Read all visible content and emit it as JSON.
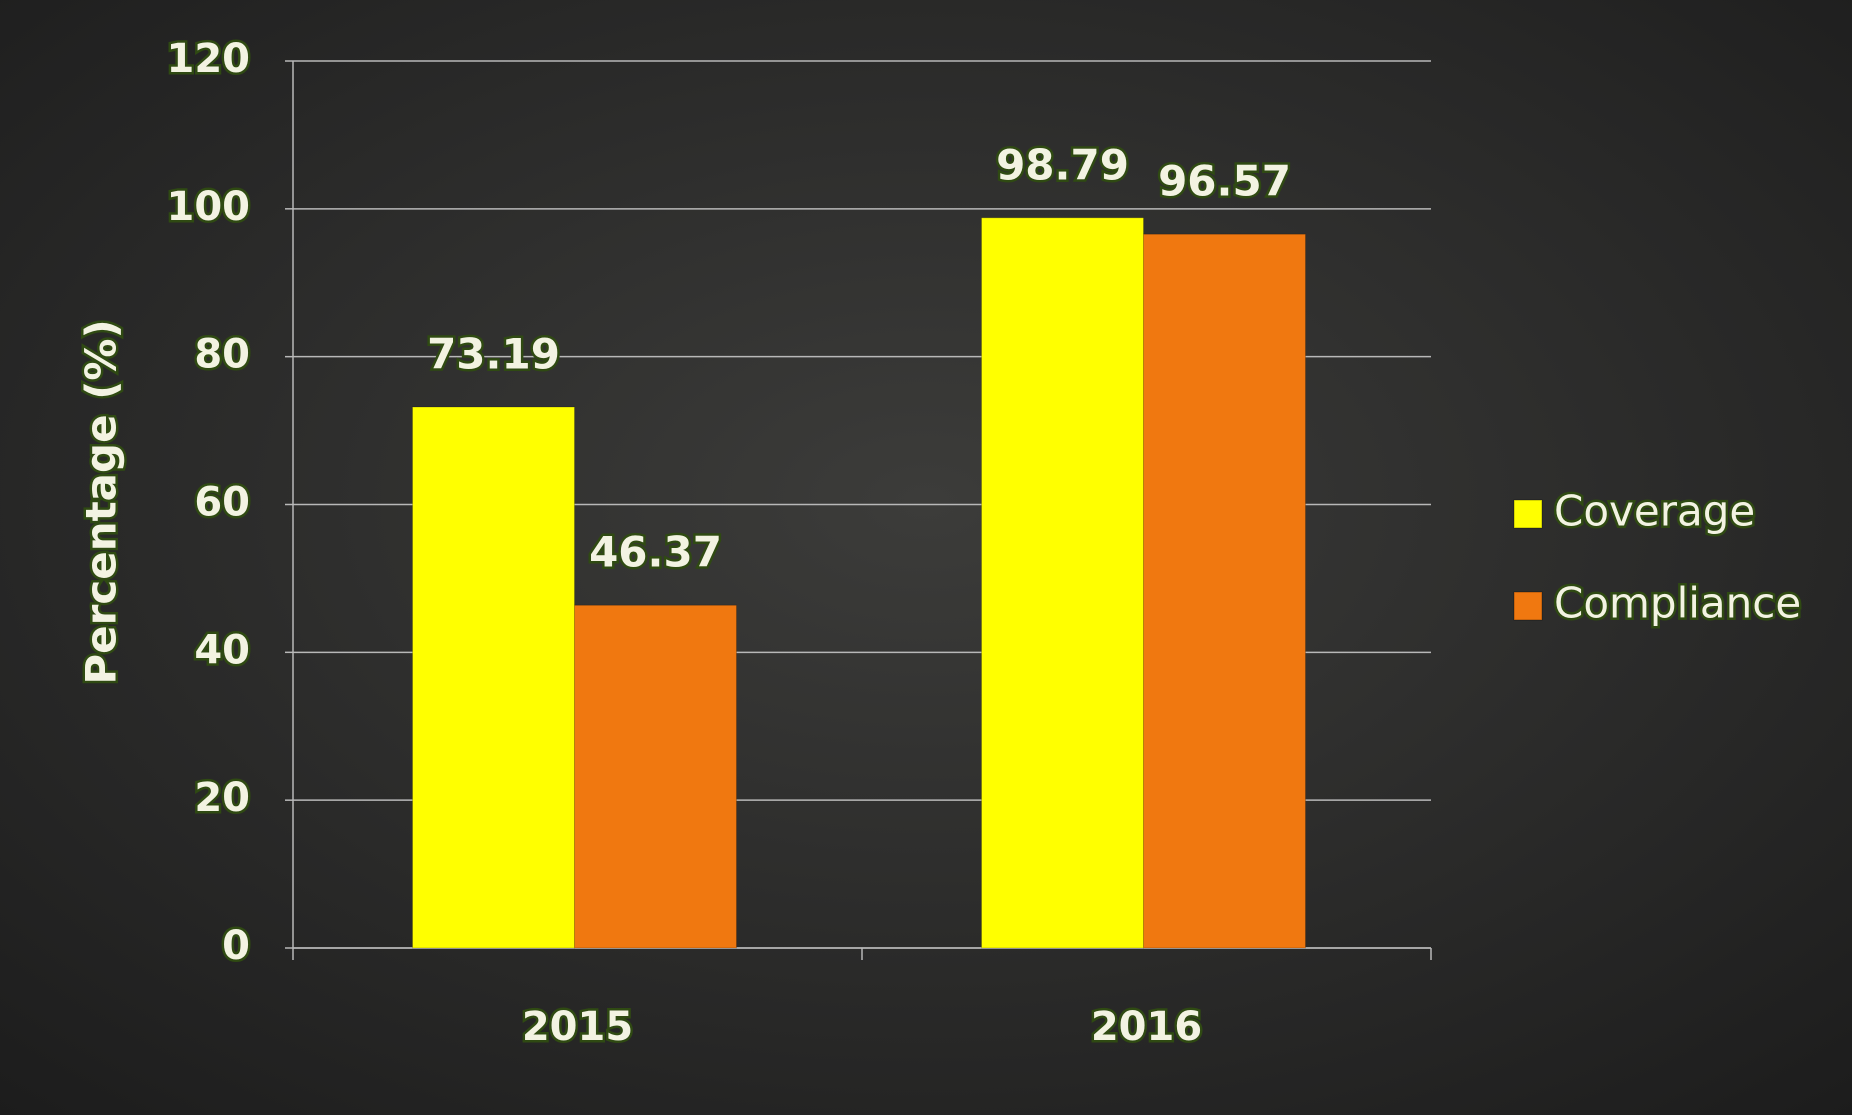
{
  "chart_data": {
    "type": "bar",
    "y_label": "Percentage (%)",
    "categories": [
      "2015",
      "2016"
    ],
    "series": [
      {
        "name": "Coverage",
        "color": "#ffff00",
        "values": [
          73.19,
          98.79
        ]
      },
      {
        "name": "Compliance",
        "color": "#f07810",
        "values": [
          46.37,
          96.57
        ]
      }
    ],
    "ylim": [
      0,
      120
    ],
    "yticks": [
      0,
      20,
      40,
      60,
      80,
      100,
      120
    ],
    "grid": true,
    "legend": "right"
  }
}
